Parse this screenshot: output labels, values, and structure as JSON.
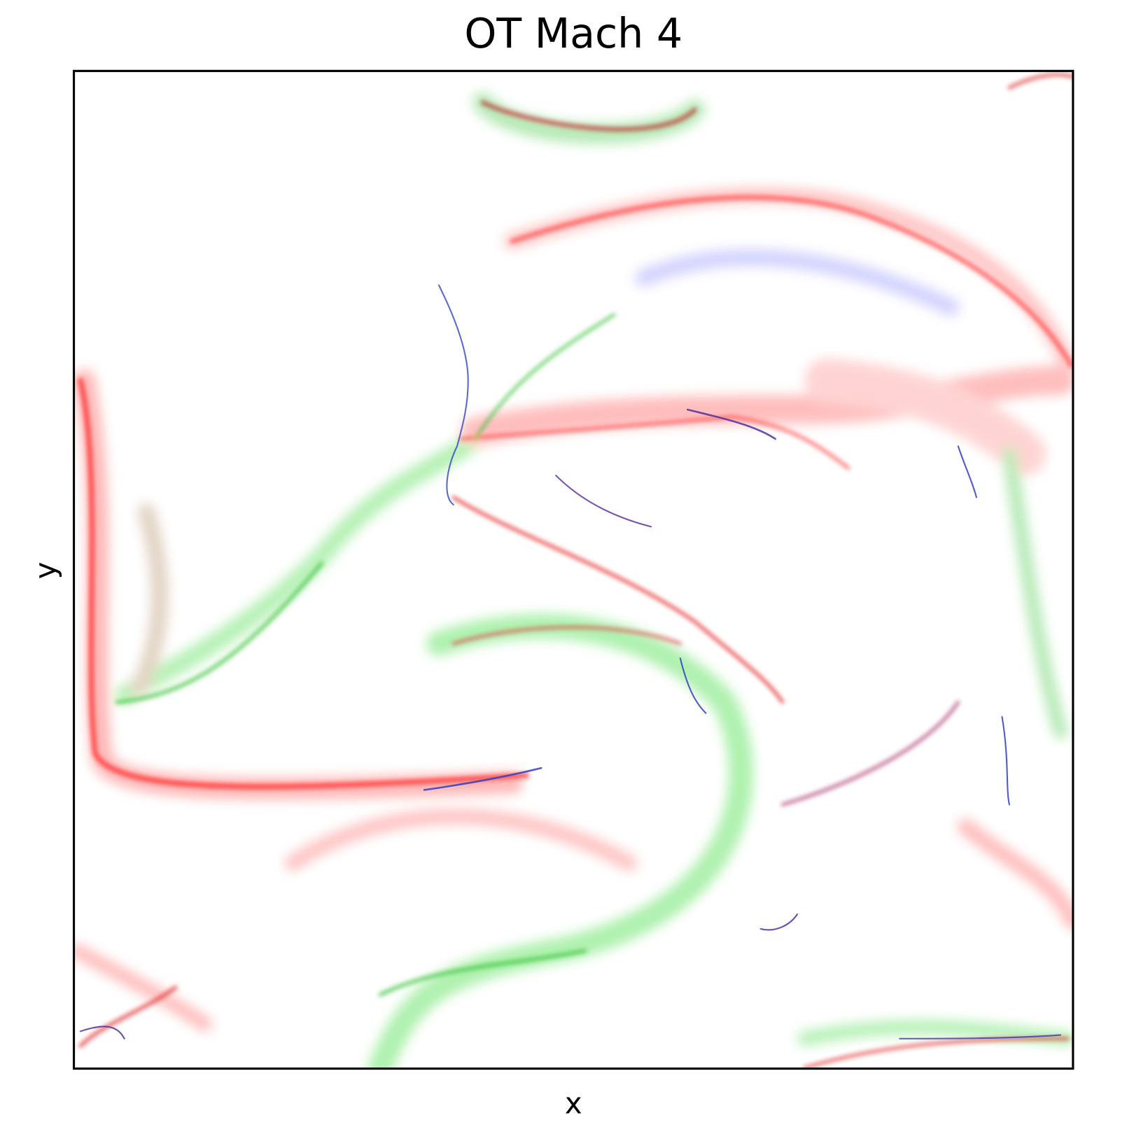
{
  "chart_data": {
    "type": "image",
    "title": "OT Mach 4",
    "x_label": "x",
    "y_label": "y"
  }
}
